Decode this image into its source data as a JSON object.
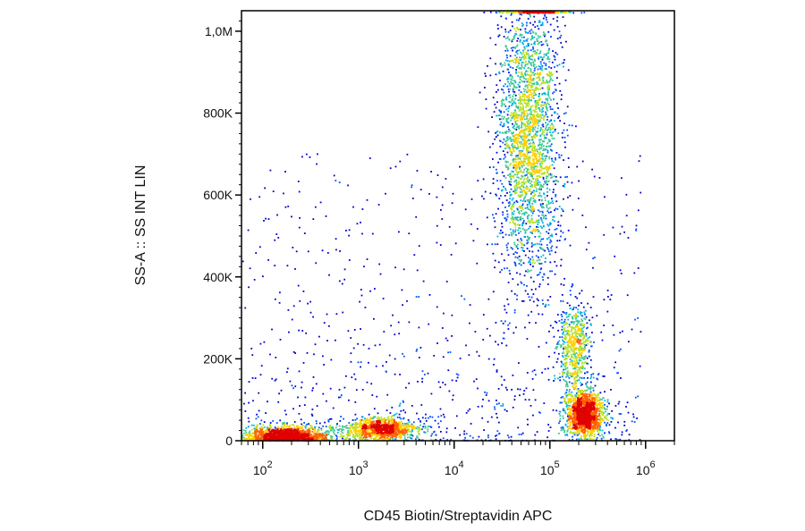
{
  "chart_data": {
    "type": "scatter",
    "subtype": "flow-cytometry density dot plot",
    "title": "",
    "xlabel": "CD45 Biotin/Streptavidin APC",
    "ylabel": "SS-A :: SS INT LIN",
    "x_scale": "log",
    "xlim": [
      60,
      2000000
    ],
    "ylim": [
      0,
      1050000
    ],
    "x_ticks": [
      {
        "base": "10",
        "exp": "2",
        "value": 100
      },
      {
        "base": "10",
        "exp": "3",
        "value": 1000
      },
      {
        "base": "10",
        "exp": "4",
        "value": 10000
      },
      {
        "base": "10",
        "exp": "5",
        "value": 100000
      },
      {
        "base": "10",
        "exp": "6",
        "value": 1000000
      }
    ],
    "y_ticks": [
      {
        "label": "0",
        "value": 0
      },
      {
        "label": "200K",
        "value": 200000
      },
      {
        "label": "400K",
        "value": 400000
      },
      {
        "label": "600K",
        "value": 600000
      },
      {
        "label": "800K",
        "value": 800000
      },
      {
        "label": "1,0M",
        "value": 1000000
      }
    ],
    "grid": false,
    "colormap": [
      "#0000cc",
      "#0050ff",
      "#00b0e0",
      "#40c890",
      "#b8e020",
      "#ffd000",
      "#ff6000",
      "#e00000"
    ],
    "populations": [
      {
        "x_center": 180,
        "y_center": 12000,
        "x_spread_log": 0.22,
        "y_spread": 12000,
        "count": 1400
      },
      {
        "x_center": 1700,
        "y_center": 28000,
        "x_spread_log": 0.2,
        "y_spread": 14000,
        "count": 1000
      },
      {
        "x_center": 60000,
        "y_center": 750000,
        "x_spread_log": 0.16,
        "y_spread": 170000,
        "count": 2600
      },
      {
        "x_center": 230000,
        "y_center": 65000,
        "x_spread_log": 0.1,
        "y_spread": 28000,
        "count": 1400
      },
      {
        "x_center": 180000,
        "y_center": 230000,
        "x_spread_log": 0.09,
        "y_spread": 50000,
        "count": 600
      }
    ]
  }
}
